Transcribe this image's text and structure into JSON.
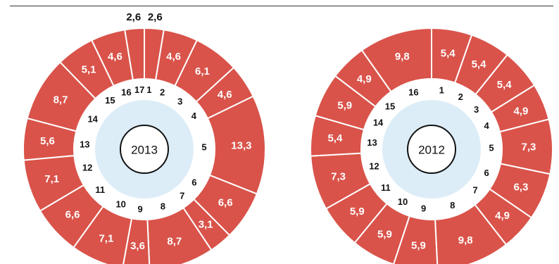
{
  "colors": {
    "ring": "#d9534a",
    "separator": "#ffffff",
    "label_inside": "#ffffff",
    "label_outside": "#111111",
    "core": "#dcedf8",
    "year_circle_stroke": "#111111"
  },
  "chart_data": [
    {
      "type": "pie",
      "title": "2013",
      "categories": [
        "1",
        "2",
        "3",
        "4",
        "5",
        "6",
        "7",
        "8",
        "9",
        "10",
        "11",
        "12",
        "13",
        "14",
        "15",
        "16",
        "17"
      ],
      "values": [
        2.6,
        4.6,
        6.1,
        4.6,
        13.3,
        6.6,
        3.1,
        8.7,
        3.6,
        7.1,
        6.6,
        7.1,
        5.6,
        8.7,
        5.1,
        4.6,
        2.6
      ],
      "value_labels": [
        "2,6",
        "4,6",
        "6,1",
        "4,6",
        "13,3",
        "6,6",
        "3,1",
        "8,7",
        "3,6",
        "7,1",
        "6,6",
        "7,1",
        "5,6",
        "8,7",
        "5,1",
        "4,6",
        "2,6"
      ],
      "outside_labels": [
        0,
        16
      ]
    },
    {
      "type": "pie",
      "title": "2012",
      "categories": [
        "1",
        "2",
        "3",
        "4",
        "5",
        "6",
        "7",
        "8",
        "9",
        "10",
        "11",
        "12",
        "13",
        "14",
        "15",
        "16"
      ],
      "values": [
        5.4,
        5.4,
        5.4,
        4.9,
        7.3,
        6.3,
        4.9,
        9.8,
        5.9,
        5.9,
        5.9,
        7.3,
        5.4,
        5.9,
        4.9,
        9.8
      ],
      "value_labels": [
        "5,4",
        "5,4",
        "5,4",
        "4,9",
        "7,3",
        "6,3",
        "4,9",
        "9,8",
        "5,9",
        "5,9",
        "5,9",
        "7,3",
        "5,4",
        "5,9",
        "4,9",
        "9,8"
      ],
      "outside_labels": []
    }
  ]
}
